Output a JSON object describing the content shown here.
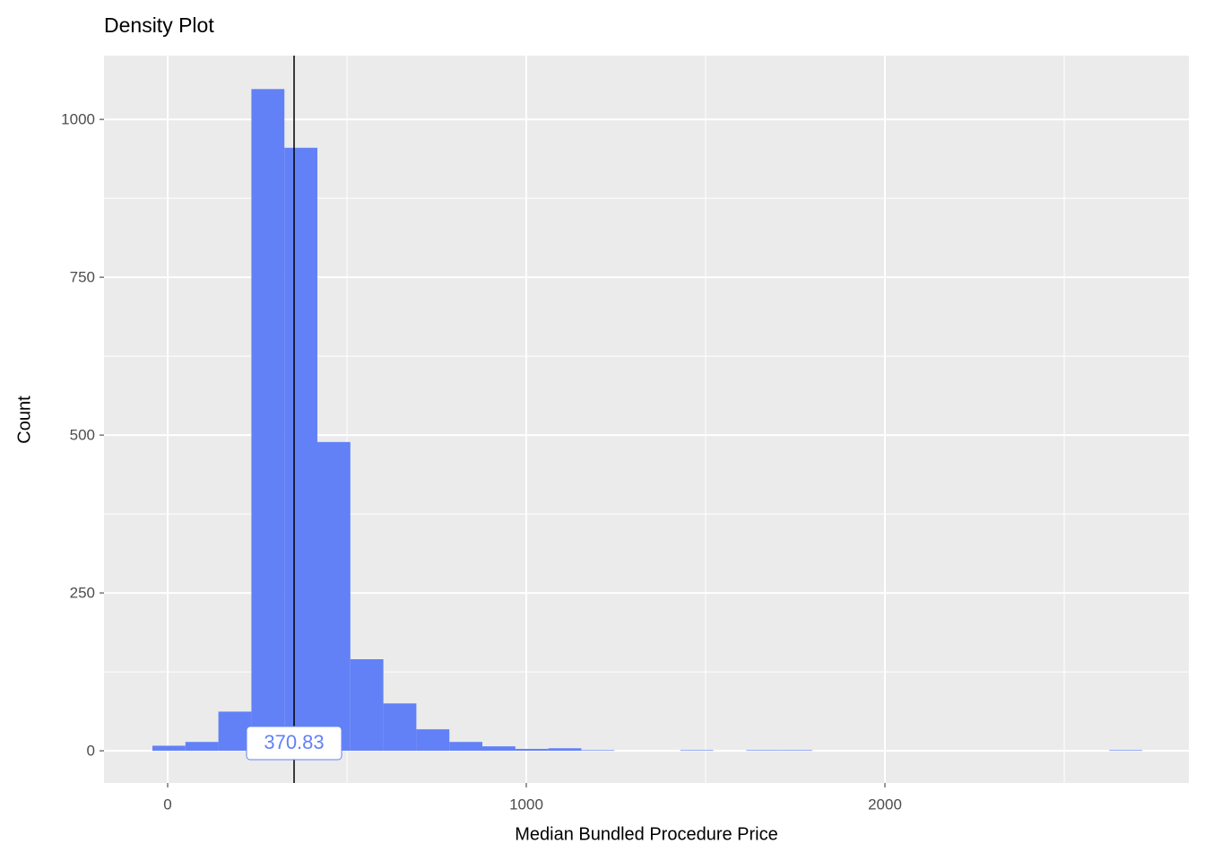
{
  "chart_data": {
    "type": "histogram",
    "title": "Density Plot",
    "x_label": "Median Bundled Procedure Price",
    "y_label": "Count",
    "bins": [
      -42.5,
      49.5,
      141.5,
      233.5,
      325.5,
      417.5,
      509.5,
      601.5,
      693.5,
      785.5,
      877.5,
      969.5,
      1061.5,
      1153.5,
      1245.5,
      1337.5,
      1429.5,
      1521.5,
      1613.5,
      1705.5,
      1797.5,
      1889.5,
      1981.5,
      2073.5,
      2165.5,
      2257.5,
      2349.5,
      2441.5,
      2533.5,
      2625.5,
      2717.5
    ],
    "values": [
      8,
      14,
      62,
      1048,
      955,
      489,
      145,
      75,
      34,
      14,
      7,
      3,
      4,
      1,
      0,
      0,
      1,
      0,
      1,
      1,
      0,
      0,
      0,
      0,
      0,
      0,
      0,
      0,
      0,
      1
    ],
    "color": "#6381F6",
    "xlim": [
      -177.5,
      2847.5
    ],
    "ylim": [
      -51,
      1101
    ],
    "xticks": [
      0,
      1000,
      2000
    ],
    "yticks": [
      0,
      250,
      500,
      750,
      1000
    ],
    "x_minor_ticks": [
      500,
      1500,
      2500
    ],
    "y_minor_ticks": [
      125,
      375,
      625,
      875
    ],
    "grid": true,
    "vline_x": 352.5,
    "vline_label": "370.83",
    "vline_label_color": "#6381F6"
  }
}
